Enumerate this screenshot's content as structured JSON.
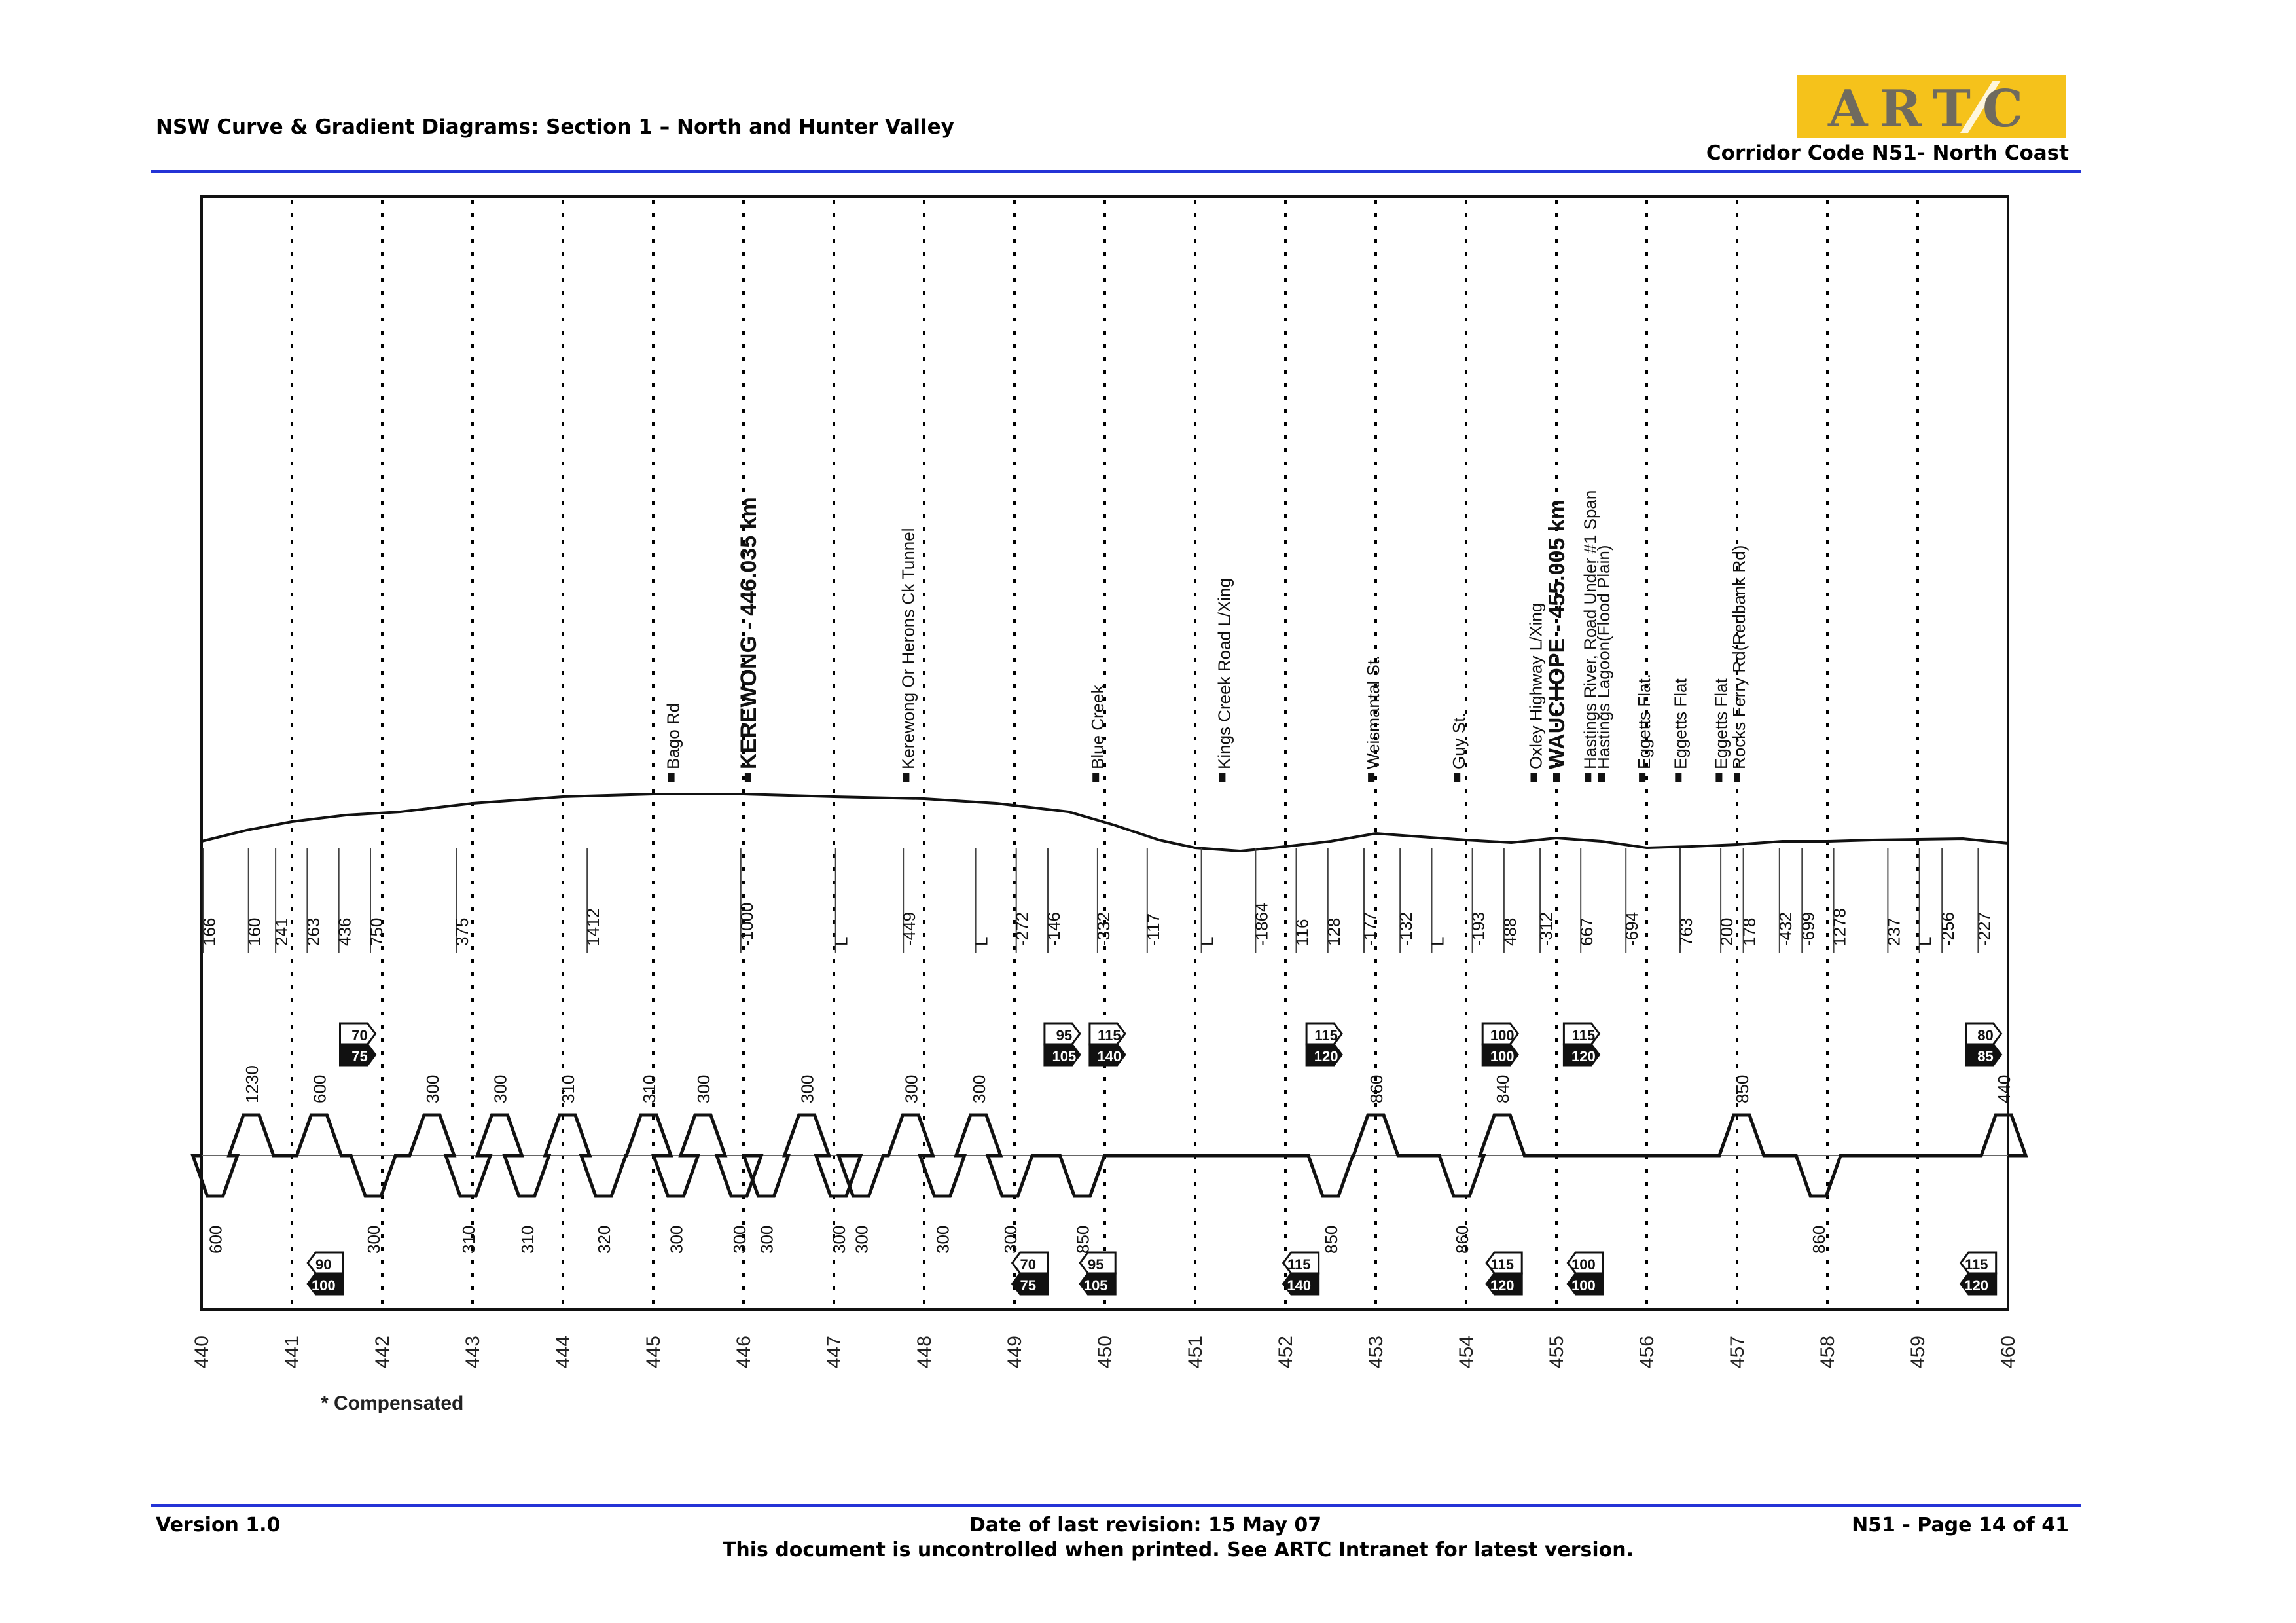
{
  "header": {
    "title": "NSW Curve & Gradient Diagrams: Section 1 – North and Hunter Valley",
    "corridor": "Corridor Code N51- North Coast",
    "logo_text": "ARTC"
  },
  "footer": {
    "version": "Version 1.0",
    "revision": "Date of last revision: 15 May 07",
    "disclaimer": "This document is uncontrolled when printed. See ARTC Intranet for latest version.",
    "page": "N51 - Page 14 of 41"
  },
  "diagram": {
    "km_start": 440,
    "km_end": 460,
    "km_labels": [
      "440",
      "441",
      "442",
      "443",
      "444",
      "445",
      "446",
      "447",
      "448",
      "449",
      "450",
      "451",
      "452",
      "453",
      "454",
      "455",
      "456",
      "457",
      "458",
      "459",
      "460"
    ],
    "compensated_note": "* Compensated",
    "locations": [
      {
        "km": 445.2,
        "label": "Bago Rd",
        "bold": false
      },
      {
        "km": 446.05,
        "label": "KEREWONG - 446.035 km",
        "bold": true
      },
      {
        "km": 447.8,
        "label": "Kerewong Or Herons Ck Tunnel",
        "bold": false
      },
      {
        "km": 449.9,
        "label": "Blue Creek",
        "bold": false
      },
      {
        "km": 451.3,
        "label": "Kings Creek Road L/Xing",
        "bold": false
      },
      {
        "km": 452.95,
        "label": "Weismantal St.",
        "bold": false
      },
      {
        "km": 453.9,
        "label": "Guy St.",
        "bold": false
      },
      {
        "km": 454.75,
        "label": "Oxley Highway L/Xing",
        "bold": false
      },
      {
        "km": 455.0,
        "label": "WAUCHOPE - 455.005 km",
        "bold": true
      },
      {
        "km": 455.35,
        "label": "Hastings River, Road Under #1 Span",
        "bold": false
      },
      {
        "km": 455.5,
        "label": "Hastings Lagoon(Flood Plain)",
        "bold": false
      },
      {
        "km": 455.95,
        "label": "Eggetts Flat.",
        "bold": false
      },
      {
        "km": 456.35,
        "label": "Eggetts Flat",
        "bold": false
      },
      {
        "km": 456.8,
        "label": "Eggetts Flat",
        "bold": false
      },
      {
        "km": 457.0,
        "label": "Rocks Ferry Rd(Redbank Rd)",
        "bold": false
      }
    ],
    "gradients": [
      {
        "km": 440.15,
        "label": "166"
      },
      {
        "km": 440.65,
        "label": "160"
      },
      {
        "km": 440.95,
        "label": "241"
      },
      {
        "km": 441.3,
        "label": "263"
      },
      {
        "km": 441.65,
        "label": "436"
      },
      {
        "km": 442.0,
        "label": "750"
      },
      {
        "km": 442.95,
        "label": "375"
      },
      {
        "km": 444.4,
        "label": "1412"
      },
      {
        "km": 446.1,
        "label": "-1000"
      },
      {
        "km": 447.15,
        "label": "L"
      },
      {
        "km": 447.9,
        "label": "-449"
      },
      {
        "km": 448.7,
        "label": "L"
      },
      {
        "km": 449.15,
        "label": "-272"
      },
      {
        "km": 449.5,
        "label": "-146"
      },
      {
        "km": 450.05,
        "label": "-332"
      },
      {
        "km": 450.6,
        "label": "-117"
      },
      {
        "km": 451.2,
        "label": "L"
      },
      {
        "km": 451.8,
        "label": "-1864"
      },
      {
        "km": 452.25,
        "label": "116"
      },
      {
        "km": 452.6,
        "label": "128"
      },
      {
        "km": 453.0,
        "label": "-177"
      },
      {
        "km": 453.4,
        "label": "-132"
      },
      {
        "km": 453.75,
        "label": "L"
      },
      {
        "km": 454.2,
        "label": "-193"
      },
      {
        "km": 454.55,
        "label": "488"
      },
      {
        "km": 454.95,
        "label": "-312"
      },
      {
        "km": 455.4,
        "label": "667"
      },
      {
        "km": 455.9,
        "label": "-694"
      },
      {
        "km": 456.5,
        "label": "763"
      },
      {
        "km": 456.95,
        "label": "200"
      },
      {
        "km": 457.2,
        "label": "178"
      },
      {
        "km": 457.6,
        "label": "-432"
      },
      {
        "km": 457.85,
        "label": "-699"
      },
      {
        "km": 458.2,
        "label": "1278"
      },
      {
        "km": 458.8,
        "label": "237"
      },
      {
        "km": 459.15,
        "label": "L"
      },
      {
        "km": 459.4,
        "label": "-256"
      },
      {
        "km": 459.8,
        "label": "-227"
      }
    ],
    "curves_top": [
      {
        "km": 440.55,
        "label": "1230"
      },
      {
        "km": 441.3,
        "label": "600"
      },
      {
        "km": 442.55,
        "label": "300"
      },
      {
        "km": 443.3,
        "label": "300"
      },
      {
        "km": 444.05,
        "label": "310"
      },
      {
        "km": 444.95,
        "label": "310"
      },
      {
        "km": 445.55,
        "label": "300"
      },
      {
        "km": 446.7,
        "label": "300"
      },
      {
        "km": 447.85,
        "label": "300"
      },
      {
        "km": 448.6,
        "label": "300"
      },
      {
        "km": 453.0,
        "label": "860"
      },
      {
        "km": 454.4,
        "label": "840"
      },
      {
        "km": 457.05,
        "label": "850"
      },
      {
        "km": 459.95,
        "label": "440"
      }
    ],
    "curves_bottom": [
      {
        "km": 440.15,
        "label": "600"
      },
      {
        "km": 441.9,
        "label": "300"
      },
      {
        "km": 442.95,
        "label": "310"
      },
      {
        "km": 443.6,
        "label": "310"
      },
      {
        "km": 444.45,
        "label": "320"
      },
      {
        "km": 445.25,
        "label": "300"
      },
      {
        "km": 445.95,
        "label": "300"
      },
      {
        "km": 446.25,
        "label": "300"
      },
      {
        "km": 447.05,
        "label": "300"
      },
      {
        "km": 447.3,
        "label": "300"
      },
      {
        "km": 448.2,
        "label": "300"
      },
      {
        "km": 448.95,
        "label": "300"
      },
      {
        "km": 449.75,
        "label": "850"
      },
      {
        "km": 452.5,
        "label": "850"
      },
      {
        "km": 453.95,
        "label": "860"
      },
      {
        "km": 457.9,
        "label": "860"
      }
    ],
    "speed_signs_top": [
      {
        "km": 441.75,
        "upper": "70",
        "lower": "75"
      },
      {
        "km": 449.55,
        "upper": "95",
        "lower": "105"
      },
      {
        "km": 450.05,
        "upper": "115",
        "lower": "140"
      },
      {
        "km": 452.45,
        "upper": "115",
        "lower": "120"
      },
      {
        "km": 454.4,
        "upper": "100",
        "lower": "100"
      },
      {
        "km": 455.3,
        "upper": "115",
        "lower": "120"
      },
      {
        "km": 459.75,
        "upper": "80",
        "lower": "85"
      }
    ],
    "speed_signs_bottom": [
      {
        "km": 441.35,
        "upper": "90",
        "lower": "100"
      },
      {
        "km": 449.15,
        "upper": "70",
        "lower": "75"
      },
      {
        "km": 449.9,
        "upper": "95",
        "lower": "105"
      },
      {
        "km": 452.15,
        "upper": "115",
        "lower": "140"
      },
      {
        "km": 454.4,
        "upper": "115",
        "lower": "120"
      },
      {
        "km": 455.3,
        "upper": "100",
        "lower": "100"
      },
      {
        "km": 459.65,
        "upper": "115",
        "lower": "120"
      }
    ]
  }
}
